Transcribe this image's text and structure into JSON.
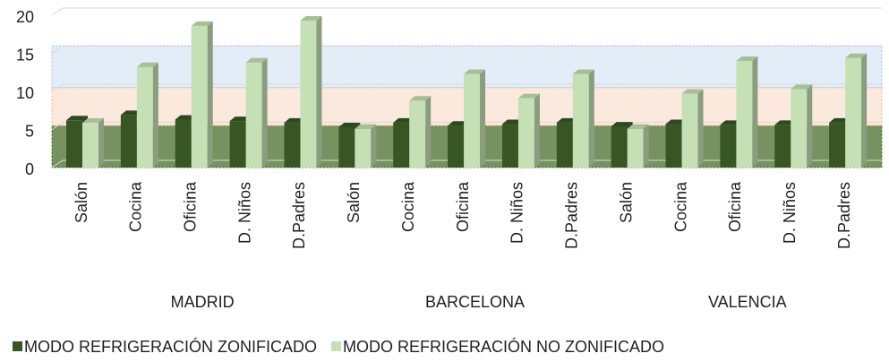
{
  "chart_data": {
    "type": "bar3d",
    "categories": [
      "Salón",
      "Cocina",
      "Oficina",
      "D. Niños",
      "D.Padres",
      "Salón",
      "Cocina",
      "Oficina",
      "D. Niños",
      "D.Padres",
      "Salón",
      "Cocina",
      "Oficina",
      "D. Niños",
      "D.Padres"
    ],
    "groups": [
      "MADRID",
      "BARCELONA",
      "VALENCIA"
    ],
    "series": [
      {
        "name": "MODO REFRIGERACIÓN ZONIFICADO",
        "color": "#375623",
        "values": [
          6.2,
          6.9,
          6.3,
          6.1,
          5.9,
          5.3,
          5.9,
          5.5,
          5.7,
          5.9,
          5.4,
          5.7,
          5.6,
          5.6,
          5.9
        ]
      },
      {
        "name": "MODO REFRIGERACIÓN NO ZONIFICADO",
        "color": "#c5e0b4",
        "values": [
          5.9,
          13.2,
          18.6,
          13.8,
          19.3,
          5.1,
          8.8,
          12.3,
          9.1,
          12.3,
          5.1,
          9.7,
          14.0,
          10.3,
          14.4
        ]
      }
    ],
    "zones": [
      {
        "range": [
          0,
          5.5
        ],
        "color": "#5f7f45"
      },
      {
        "range": [
          5.5,
          10.5
        ],
        "color": "#fbe3d6"
      },
      {
        "range": [
          10.5,
          16
        ],
        "color": "#dce9f6"
      }
    ],
    "ylim": [
      0,
      20
    ],
    "yticks": [
      0,
      5,
      10,
      15,
      20
    ],
    "grid": true,
    "legend": "bottom"
  }
}
